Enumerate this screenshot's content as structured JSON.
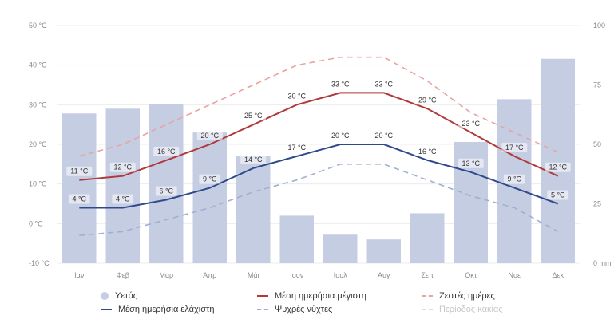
{
  "chart_data": {
    "type": "bar+line",
    "title": "",
    "months": [
      "Ιαν",
      "Φεβ",
      "Μαρ",
      "Απρ",
      "Μάι",
      "Ιουν",
      "Ιουλ",
      "Αυγ",
      "Σεπ",
      "Οκτ",
      "Νοε",
      "Δεκ"
    ],
    "left_axis": {
      "unit": "°C",
      "min": -10,
      "max": 50,
      "ticks": [
        "-10 °C",
        "0 °C",
        "10 °C",
        "20 °C",
        "30 °C",
        "40 °C",
        "50 °C"
      ]
    },
    "right_axis": {
      "min": 0,
      "max": 100,
      "ticks": [
        "0 mm",
        "25",
        "50",
        "75",
        "100"
      ]
    },
    "series": [
      {
        "name": "Υετός",
        "kind": "bar",
        "axis": "right",
        "color": "#c5cde3",
        "values": [
          63,
          65,
          67,
          55,
          45,
          20,
          12,
          10,
          21,
          51,
          69,
          86
        ]
      },
      {
        "name": "Μέση ημερήσια μέγιστη",
        "kind": "line",
        "axis": "left",
        "color": "#b03a3a",
        "values": [
          11,
          12,
          16,
          20,
          25,
          30,
          33,
          33,
          29,
          23,
          17,
          12
        ],
        "labels": [
          "11 °C",
          "12 °C",
          "16 °C",
          "20 °C",
          "25 °C",
          "30 °C",
          "33 °C",
          "33 °C",
          "29 °C",
          "23 °C",
          "17 °C",
          "12 °C"
        ]
      },
      {
        "name": "Μέση ημερήσια ελάχιστη",
        "kind": "line",
        "axis": "left",
        "color": "#2f4a8a",
        "values": [
          4,
          4,
          6,
          9,
          14,
          17,
          20,
          20,
          16,
          13,
          9,
          5
        ],
        "labels": [
          "4 °C",
          "4 °C",
          "6 °C",
          "9 °C",
          "14 °C",
          "17 °C",
          "20 °C",
          "20 °C",
          "16 °C",
          "13 °C",
          "9 °C",
          "5 °C"
        ]
      },
      {
        "name": "Ζεστές ημέρες",
        "kind": "dashed-line",
        "axis": "left",
        "color": "#e8a3a3",
        "values": [
          17,
          20,
          25,
          30,
          35,
          40,
          42,
          42,
          36,
          28,
          23,
          18
        ]
      },
      {
        "name": "Ψυχρές νύχτες",
        "kind": "dashed-line",
        "axis": "left",
        "color": "#9fb0cf",
        "values": [
          -3,
          -2,
          1,
          4,
          8,
          11,
          15,
          15,
          11,
          7,
          4,
          -2
        ]
      },
      {
        "name": "Περίοδος κακίας",
        "kind": "legend-only",
        "muted": true,
        "color": "#dddddd",
        "values": []
      }
    ],
    "legend": [
      {
        "label": "Υετός",
        "style": "dot",
        "color": "#c5cde3"
      },
      {
        "label": "Μέση ημερήσια μέγιστη",
        "style": "line",
        "color": "#b03a3a"
      },
      {
        "label": "Ζεστές ημέρες",
        "style": "dash",
        "color": "#e8a3a3"
      },
      {
        "label": "Μέση ημερήσια ελάχιστη",
        "style": "line",
        "color": "#2f4a8a"
      },
      {
        "label": "Ψυχρές νύχτες",
        "style": "dash",
        "color": "#9fb0cf"
      },
      {
        "label": "Περίοδος κακίας",
        "style": "dash",
        "color": "#dddddd",
        "muted": true
      }
    ],
    "grid": true,
    "legend_position": "bottom"
  }
}
